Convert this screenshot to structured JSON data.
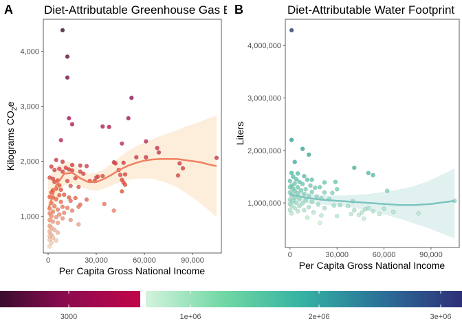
{
  "colors": {
    "ghg_low": "#f7d3b8",
    "ghg_mid": "#e8563a",
    "ghg_high": "#b0105a",
    "ghg_dark": "#3a0c2e",
    "ghg_line": "#f08060",
    "ghg_band": "#fdebd6",
    "water_low": "#d0f2d8",
    "water_mid": "#37b89f",
    "water_dark": "#2c3473",
    "water_line": "#7cc4c0",
    "water_band": "#dbeeed"
  },
  "legend": {
    "ghg_tick": "3000",
    "water_ticks": [
      "1e+06",
      "2e+06",
      "3e+06"
    ]
  },
  "chart_data": [
    {
      "panel_label": "A",
      "type": "scatter",
      "title": "Diet-Attributable Greenhouse Gas E",
      "xlabel": "Per Capita Gross National Income",
      "ylabel": "Kilograms CO",
      "ylabel_sub": "2",
      "ylabel_suffix": "e",
      "xlim": [
        -3000,
        108000
      ],
      "ylim": [
        330,
        4580
      ],
      "x_ticks": [
        0,
        30000,
        60000,
        90000
      ],
      "x_tick_labels": [
        "0",
        "30,000",
        "60,000",
        "90,000"
      ],
      "y_ticks": [
        1000,
        2000,
        3000,
        4000
      ],
      "y_tick_labels": [
        "1,000",
        "2,000",
        "3,000",
        "4,000"
      ],
      "color_range": [
        450,
        4380
      ],
      "points": [
        [
          9000,
          4380
        ],
        [
          12000,
          3900
        ],
        [
          12000,
          3520
        ],
        [
          52000,
          3150
        ],
        [
          13000,
          2780
        ],
        [
          50000,
          2780
        ],
        [
          15000,
          2670
        ],
        [
          34000,
          2630
        ],
        [
          38000,
          2620
        ],
        [
          8000,
          2380
        ],
        [
          61000,
          2360
        ],
        [
          46000,
          2320
        ],
        [
          68000,
          2240
        ],
        [
          69000,
          2160
        ],
        [
          55000,
          2070
        ],
        [
          61000,
          2070
        ],
        [
          5000,
          2020
        ],
        [
          9000,
          1990
        ],
        [
          41000,
          1980
        ],
        [
          47000,
          1970
        ],
        [
          82000,
          1960
        ],
        [
          105000,
          2060
        ],
        [
          42000,
          1960
        ],
        [
          15000,
          1930
        ],
        [
          20000,
          1920
        ],
        [
          24000,
          1910
        ],
        [
          2000,
          1900
        ],
        [
          11000,
          1880
        ],
        [
          84000,
          1870
        ],
        [
          7000,
          1860
        ],
        [
          13000,
          1850
        ],
        [
          15000,
          1830
        ],
        [
          4000,
          1840
        ],
        [
          44000,
          1840
        ],
        [
          9000,
          1810
        ],
        [
          20000,
          1810
        ],
        [
          22000,
          1770
        ],
        [
          48000,
          1760
        ],
        [
          45000,
          1750
        ],
        [
          81000,
          1740
        ],
        [
          34000,
          1730
        ],
        [
          31000,
          1720
        ],
        [
          1000,
          1700
        ],
        [
          30000,
          1700
        ],
        [
          3000,
          1680
        ],
        [
          17000,
          1690
        ],
        [
          6000,
          1650
        ],
        [
          26000,
          1640
        ],
        [
          29000,
          1640
        ],
        [
          46000,
          1660
        ],
        [
          12000,
          1640
        ],
        [
          4000,
          1620
        ],
        [
          47000,
          1610
        ],
        [
          7000,
          1560
        ],
        [
          48000,
          1570
        ],
        [
          14000,
          1550
        ],
        [
          19000,
          1530
        ],
        [
          5000,
          1500
        ],
        [
          8000,
          1480
        ],
        [
          3000,
          1470
        ],
        [
          46000,
          1450
        ],
        [
          2000,
          1430
        ],
        [
          10000,
          1390
        ],
        [
          7000,
          1380
        ],
        [
          1000,
          1350
        ],
        [
          3000,
          1340
        ],
        [
          13000,
          1340
        ],
        [
          17000,
          1330
        ],
        [
          5000,
          1310
        ],
        [
          24000,
          1300
        ],
        [
          14000,
          1280
        ],
        [
          8000,
          1260
        ],
        [
          35000,
          1220
        ],
        [
          2000,
          1240
        ],
        [
          20000,
          1210
        ],
        [
          4000,
          1180
        ],
        [
          9000,
          1170
        ],
        [
          19000,
          1170
        ],
        [
          12000,
          1150
        ],
        [
          1000,
          1140
        ],
        [
          6000,
          1120
        ],
        [
          15000,
          1100
        ],
        [
          41000,
          1100
        ],
        [
          3000,
          1080
        ],
        [
          10000,
          1060
        ],
        [
          1000,
          1050
        ],
        [
          7000,
          1030
        ],
        [
          2000,
          1000
        ],
        [
          5000,
          980
        ],
        [
          9000,
          960
        ],
        [
          1000,
          930
        ],
        [
          14000,
          930
        ],
        [
          3000,
          900
        ],
        [
          6000,
          880
        ],
        [
          19000,
          850
        ],
        [
          1000,
          820
        ],
        [
          2000,
          790
        ],
        [
          4000,
          750
        ],
        [
          1000,
          720
        ],
        [
          6000,
          700
        ],
        [
          2000,
          660
        ],
        [
          1000,
          640
        ],
        [
          3000,
          610
        ],
        [
          1000,
          570
        ],
        [
          5000,
          560
        ],
        [
          2000,
          520
        ],
        [
          1000,
          450
        ]
      ],
      "fit": [
        [
          0,
          1120
        ],
        [
          5000,
          1560
        ],
        [
          10000,
          1770
        ],
        [
          15000,
          1790
        ],
        [
          20000,
          1690
        ],
        [
          25000,
          1620
        ],
        [
          30000,
          1620
        ],
        [
          35000,
          1680
        ],
        [
          40000,
          1760
        ],
        [
          45000,
          1850
        ],
        [
          50000,
          1920
        ],
        [
          55000,
          1970
        ],
        [
          60000,
          2010
        ],
        [
          65000,
          2030
        ],
        [
          70000,
          2040
        ],
        [
          75000,
          2040
        ],
        [
          80000,
          2040
        ],
        [
          85000,
          2020
        ],
        [
          90000,
          2000
        ],
        [
          95000,
          1980
        ],
        [
          100000,
          1940
        ],
        [
          105000,
          1910
        ]
      ],
      "band": [
        [
          0,
          560,
          1680
        ],
        [
          5000,
          1200,
          1900
        ],
        [
          10000,
          1560,
          1980
        ],
        [
          15000,
          1600,
          1980
        ],
        [
          20000,
          1540,
          1840
        ],
        [
          25000,
          1480,
          1770
        ],
        [
          30000,
          1460,
          1790
        ],
        [
          35000,
          1500,
          1860
        ],
        [
          40000,
          1560,
          1960
        ],
        [
          45000,
          1620,
          2080
        ],
        [
          50000,
          1660,
          2190
        ],
        [
          55000,
          1680,
          2270
        ],
        [
          60000,
          1690,
          2340
        ],
        [
          65000,
          1680,
          2400
        ],
        [
          70000,
          1640,
          2460
        ],
        [
          75000,
          1590,
          2510
        ],
        [
          80000,
          1530,
          2560
        ],
        [
          85000,
          1440,
          2620
        ],
        [
          90000,
          1340,
          2670
        ],
        [
          95000,
          1230,
          2720
        ],
        [
          100000,
          1110,
          2780
        ],
        [
          105000,
          980,
          2830
        ]
      ]
    },
    {
      "panel_label": "B",
      "type": "scatter",
      "title": "Diet-Attributable Water Footprint",
      "xlabel": "Per Capita Gross National Income",
      "ylabel": "Liters",
      "xlim": [
        -3000,
        108000
      ],
      "ylim": [
        150000,
        4500000
      ],
      "x_ticks": [
        0,
        30000,
        60000,
        90000
      ],
      "x_tick_labels": [
        "0",
        "30,000",
        "60,000",
        "90,000"
      ],
      "y_ticks": [
        1000000,
        2000000,
        3000000,
        4000000
      ],
      "y_tick_labels": [
        "1,000,000",
        "2,000,000",
        "3,000,000",
        "4,000,000"
      ],
      "color_range": [
        600000,
        4300000
      ],
      "points": [
        [
          1000,
          4290000
        ],
        [
          1000,
          2200000
        ],
        [
          8000,
          2030000
        ],
        [
          12000,
          1920000
        ],
        [
          3000,
          1780000
        ],
        [
          41000,
          1670000
        ],
        [
          50000,
          1570000
        ],
        [
          53000,
          1530000
        ],
        [
          1000,
          1570000
        ],
        [
          5000,
          1560000
        ],
        [
          9000,
          1510000
        ],
        [
          2000,
          1500000
        ],
        [
          4000,
          1450000
        ],
        [
          11000,
          1440000
        ],
        [
          14000,
          1440000
        ],
        [
          0,
          1420000
        ],
        [
          6000,
          1400000
        ],
        [
          22000,
          1390000
        ],
        [
          29000,
          1400000
        ],
        [
          3000,
          1370000
        ],
        [
          8000,
          1360000
        ],
        [
          13000,
          1330000
        ],
        [
          1000,
          1330000
        ],
        [
          0,
          1300000
        ],
        [
          5000,
          1300000
        ],
        [
          16000,
          1290000
        ],
        [
          19000,
          1300000
        ],
        [
          2000,
          1270000
        ],
        [
          10000,
          1260000
        ],
        [
          30000,
          1260000
        ],
        [
          62000,
          1230000
        ],
        [
          7000,
          1240000
        ],
        [
          3000,
          1220000
        ],
        [
          0,
          1200000
        ],
        [
          14000,
          1210000
        ],
        [
          22000,
          1200000
        ],
        [
          5000,
          1180000
        ],
        [
          27000,
          1190000
        ],
        [
          9000,
          1170000
        ],
        [
          1000,
          1150000
        ],
        [
          12000,
          1130000
        ],
        [
          17000,
          1120000
        ],
        [
          3000,
          1100000
        ],
        [
          20000,
          1090000
        ],
        [
          6000,
          1080000
        ],
        [
          0,
          1060000
        ],
        [
          25000,
          1070000
        ],
        [
          10000,
          1050000
        ],
        [
          2000,
          1040000
        ],
        [
          14000,
          1020000
        ],
        [
          40000,
          1030000
        ],
        [
          4000,
          1000000
        ],
        [
          8000,
          990000
        ],
        [
          0,
          980000
        ],
        [
          18000,
          970000
        ],
        [
          1000,
          950000
        ],
        [
          28000,
          950000
        ],
        [
          32000,
          960000
        ],
        [
          6000,
          940000
        ],
        [
          37000,
          940000
        ],
        [
          12000,
          920000
        ],
        [
          3000,
          900000
        ],
        [
          22000,
          900000
        ],
        [
          50000,
          900000
        ],
        [
          60000,
          890000
        ],
        [
          48000,
          880000
        ],
        [
          0,
          870000
        ],
        [
          9000,
          860000
        ],
        [
          41000,
          860000
        ],
        [
          5000,
          840000
        ],
        [
          53000,
          840000
        ],
        [
          66000,
          830000
        ],
        [
          15000,
          820000
        ],
        [
          46000,
          820000
        ],
        [
          1000,
          800000
        ],
        [
          39000,
          790000
        ],
        [
          57000,
          790000
        ],
        [
          44000,
          770000
        ],
        [
          82000,
          800000
        ],
        [
          105000,
          1040000
        ],
        [
          20000,
          760000
        ],
        [
          30000,
          750000
        ],
        [
          11000,
          720000
        ],
        [
          47000,
          700000
        ],
        [
          19000,
          620000
        ]
      ],
      "fit": [
        [
          0,
          1170000
        ],
        [
          5000,
          1130000
        ],
        [
          10000,
          1100000
        ],
        [
          15000,
          1080000
        ],
        [
          20000,
          1060000
        ],
        [
          25000,
          1050000
        ],
        [
          30000,
          1040000
        ],
        [
          35000,
          1030000
        ],
        [
          40000,
          1020000
        ],
        [
          45000,
          1010000
        ],
        [
          50000,
          1000000
        ],
        [
          55000,
          990000
        ],
        [
          60000,
          980000
        ],
        [
          65000,
          970000
        ],
        [
          70000,
          960000
        ],
        [
          75000,
          960000
        ],
        [
          80000,
          960000
        ],
        [
          85000,
          970000
        ],
        [
          90000,
          980000
        ],
        [
          95000,
          1000000
        ],
        [
          100000,
          1020000
        ],
        [
          105000,
          1040000
        ]
      ],
      "band": [
        [
          0,
          970000,
          1380000
        ],
        [
          5000,
          990000,
          1270000
        ],
        [
          10000,
          990000,
          1210000
        ],
        [
          15000,
          980000,
          1170000
        ],
        [
          20000,
          970000,
          1150000
        ],
        [
          25000,
          960000,
          1140000
        ],
        [
          30000,
          950000,
          1140000
        ],
        [
          35000,
          930000,
          1140000
        ],
        [
          40000,
          910000,
          1150000
        ],
        [
          45000,
          880000,
          1160000
        ],
        [
          50000,
          850000,
          1170000
        ],
        [
          55000,
          820000,
          1190000
        ],
        [
          60000,
          780000,
          1210000
        ],
        [
          65000,
          740000,
          1230000
        ],
        [
          70000,
          700000,
          1260000
        ],
        [
          75000,
          650000,
          1290000
        ],
        [
          80000,
          600000,
          1330000
        ],
        [
          85000,
          550000,
          1380000
        ],
        [
          90000,
          500000,
          1440000
        ],
        [
          95000,
          440000,
          1510000
        ],
        [
          100000,
          380000,
          1580000
        ],
        [
          105000,
          320000,
          1660000
        ]
      ]
    }
  ]
}
